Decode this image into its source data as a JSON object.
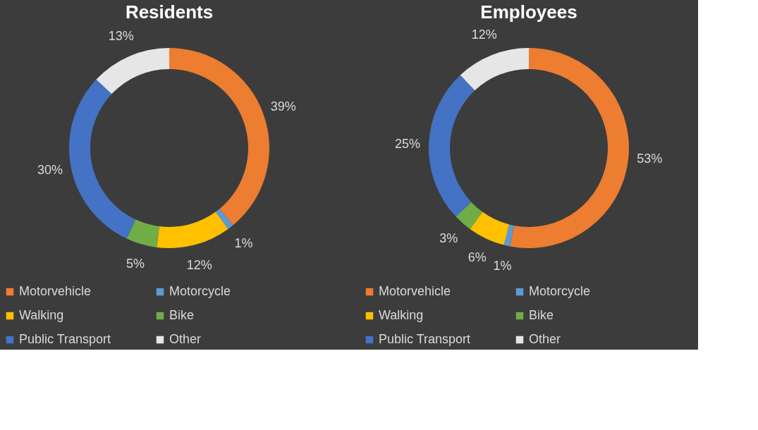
{
  "chart_data": [
    {
      "type": "donut",
      "title": "Residents",
      "categories": [
        "Motorvehicle",
        "Motorcycle",
        "Walking",
        "Bike",
        "Public Transport",
        "Other"
      ],
      "values": [
        39,
        1,
        12,
        5,
        30,
        13
      ],
      "value_labels": [
        "39%",
        "1%",
        "12%",
        "5%",
        "30%",
        "13%"
      ],
      "colors": [
        "#ed7d31",
        "#5b9bd5",
        "#ffc000",
        "#70ad47",
        "#4472c4",
        "#e7e6e6"
      ],
      "legend": "bottom"
    },
    {
      "type": "donut",
      "title": "Employees",
      "categories": [
        "Motorvehicle",
        "Motorcycle",
        "Walking",
        "Bike",
        "Public Transport",
        "Other"
      ],
      "values": [
        53,
        1,
        6,
        3,
        25,
        12
      ],
      "value_labels": [
        "53%",
        "1%",
        "6%",
        "3%",
        "25%",
        "12%"
      ],
      "colors": [
        "#ed7d31",
        "#5b9bd5",
        "#ffc000",
        "#70ad47",
        "#4472c4",
        "#e7e6e6"
      ],
      "legend": "bottom"
    }
  ]
}
